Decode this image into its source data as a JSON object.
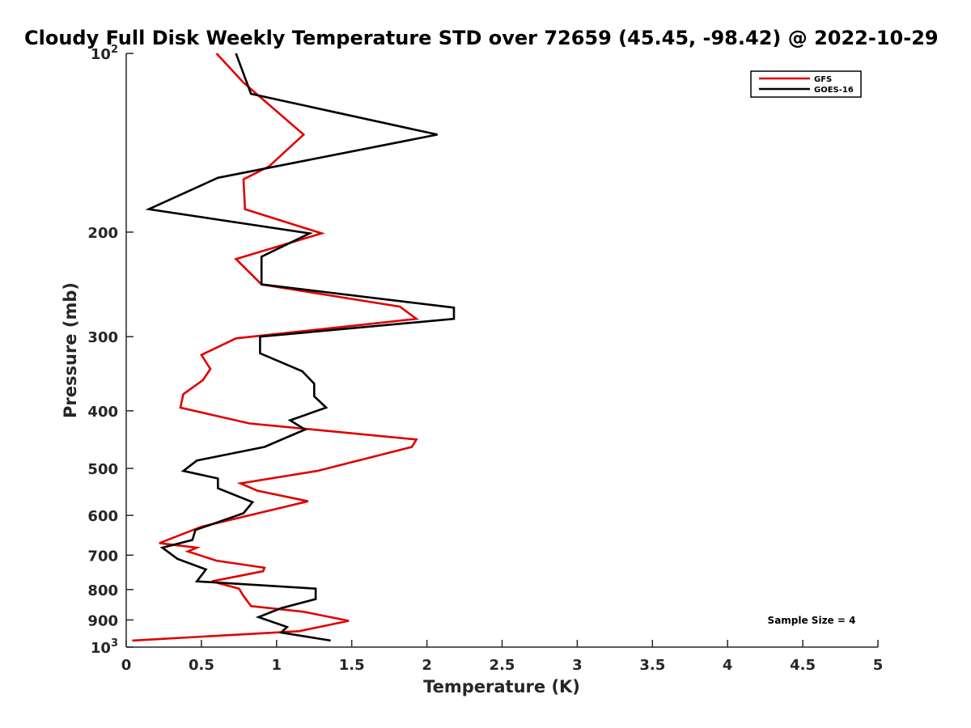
{
  "chart_data": {
    "type": "line",
    "title": "Cloudy Full Disk Weekly Temperature STD over 72659 (45.45, -98.42) @ 2022-10-29",
    "xlabel": "Temperature (K)",
    "ylabel": "Pressure (mb)",
    "xlim": [
      0,
      5
    ],
    "ylim": [
      100,
      1000
    ],
    "y_scale": "log",
    "y_reversed": true,
    "grid": false,
    "legend_position": "top-right",
    "x_ticks": [
      "0",
      "0.5",
      "1",
      "1.5",
      "2",
      "2.5",
      "3",
      "3.5",
      "4",
      "4.5",
      "5"
    ],
    "y_ticks": [
      {
        "value": 100,
        "label": "10",
        "sup": "2"
      },
      {
        "value": 200,
        "label": "200",
        "sup": ""
      },
      {
        "value": 300,
        "label": "300",
        "sup": ""
      },
      {
        "value": 400,
        "label": "400",
        "sup": ""
      },
      {
        "value": 500,
        "label": "500",
        "sup": ""
      },
      {
        "value": 600,
        "label": "600",
        "sup": ""
      },
      {
        "value": 700,
        "label": "700",
        "sup": ""
      },
      {
        "value": 800,
        "label": "800",
        "sup": ""
      },
      {
        "value": 900,
        "label": "900",
        "sup": ""
      },
      {
        "value": 1000,
        "label": "10",
        "sup": "3"
      }
    ],
    "series": [
      {
        "name": "GFS",
        "color": "#e00000",
        "points": [
          [
            0.6,
            100
          ],
          [
            0.78,
            112
          ],
          [
            1.18,
            137
          ],
          [
            0.95,
            155
          ],
          [
            0.78,
            163
          ],
          [
            0.79,
            183
          ],
          [
            1.3,
            201
          ],
          [
            0.73,
            222
          ],
          [
            0.9,
            245
          ],
          [
            1.82,
            267
          ],
          [
            1.93,
            280
          ],
          [
            0.73,
            302
          ],
          [
            0.5,
            322
          ],
          [
            0.56,
            340
          ],
          [
            0.51,
            355
          ],
          [
            0.38,
            375
          ],
          [
            0.36,
            395
          ],
          [
            0.82,
            420
          ],
          [
            1.93,
            447
          ],
          [
            1.9,
            460
          ],
          [
            1.27,
            505
          ],
          [
            0.76,
            530
          ],
          [
            0.87,
            545
          ],
          [
            1.21,
            568
          ],
          [
            1.06,
            580
          ],
          [
            0.5,
            627
          ],
          [
            0.22,
            668
          ],
          [
            0.47,
            680
          ],
          [
            0.41,
            690
          ],
          [
            0.6,
            715
          ],
          [
            0.92,
            735
          ],
          [
            0.91,
            745
          ],
          [
            0.57,
            775
          ],
          [
            0.75,
            797
          ],
          [
            0.78,
            820
          ],
          [
            0.83,
            853
          ],
          [
            1.18,
            872
          ],
          [
            1.48,
            903
          ],
          [
            1.15,
            940
          ],
          [
            0.04,
            975
          ]
        ]
      },
      {
        "name": "GOES-16",
        "color": "#000000",
        "points": [
          [
            0.73,
            100
          ],
          [
            0.83,
            117
          ],
          [
            2.07,
            137
          ],
          [
            0.61,
            162
          ],
          [
            0.15,
            183
          ],
          [
            1.22,
            201
          ],
          [
            0.9,
            220
          ],
          [
            0.9,
            245
          ],
          [
            2.18,
            268
          ],
          [
            2.18,
            280
          ],
          [
            0.89,
            300
          ],
          [
            0.89,
            320
          ],
          [
            1.17,
            343
          ],
          [
            1.25,
            360
          ],
          [
            1.25,
            378
          ],
          [
            1.33,
            395
          ],
          [
            1.09,
            415
          ],
          [
            1.19,
            430
          ],
          [
            0.92,
            460
          ],
          [
            0.47,
            485
          ],
          [
            0.38,
            505
          ],
          [
            0.61,
            520
          ],
          [
            0.61,
            540
          ],
          [
            0.84,
            570
          ],
          [
            0.78,
            595
          ],
          [
            0.46,
            635
          ],
          [
            0.44,
            660
          ],
          [
            0.24,
            680
          ],
          [
            0.34,
            710
          ],
          [
            0.53,
            740
          ],
          [
            0.47,
            775
          ],
          [
            1.26,
            797
          ],
          [
            1.26,
            830
          ],
          [
            1.03,
            860
          ],
          [
            0.88,
            890
          ],
          [
            1.07,
            925
          ],
          [
            1.03,
            945
          ],
          [
            1.36,
            975
          ]
        ]
      }
    ],
    "annotation": "Sample Size = 4"
  }
}
